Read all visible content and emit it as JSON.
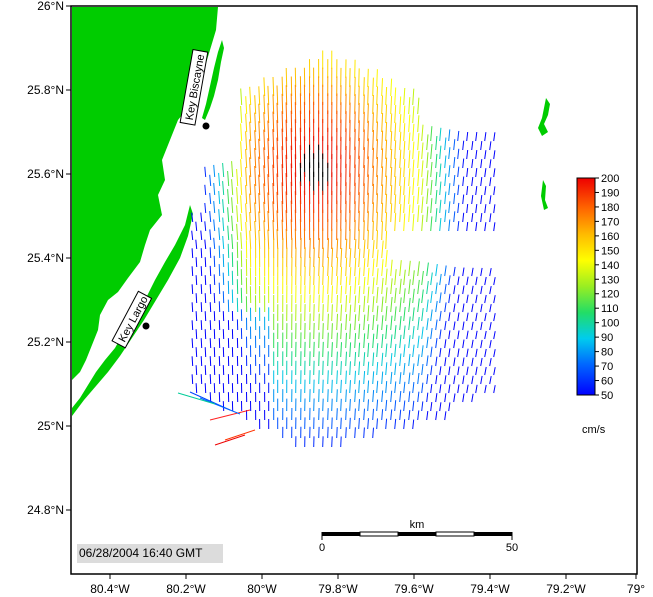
{
  "map": {
    "lat_labels": [
      "26°N",
      "25.8°N",
      "25.6°N",
      "25.4°N",
      "25.2°N",
      "25°N",
      "24.8°N"
    ],
    "lon_labels": [
      "80.4°W",
      "80.2°W",
      "80°W",
      "79.8°W",
      "79.6°W",
      "79.4°W",
      "79.2°W",
      "79°"
    ],
    "places": [
      {
        "name": "Key Biscayne"
      },
      {
        "name": "Key Largo"
      }
    ],
    "timestamp": "06/28/2004 16:40 GMT",
    "scale_bar": {
      "unit": "km",
      "start": "0",
      "end": "50"
    },
    "colorbar": {
      "unit": "cm/s",
      "ticks": [
        "200",
        "190",
        "180",
        "170",
        "160",
        "150",
        "140",
        "130",
        "120",
        "110",
        "100",
        "90",
        "80",
        "70",
        "60",
        "50"
      ],
      "min": 50,
      "max": 200
    },
    "colors": {
      "land": "#00cc00",
      "water": "#ffffff",
      "frame": "#000000"
    }
  }
}
